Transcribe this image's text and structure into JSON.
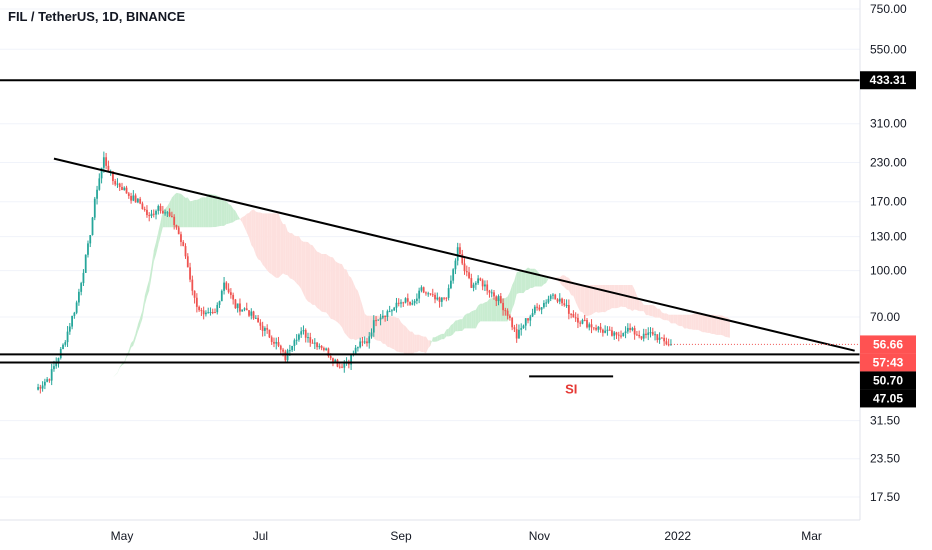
{
  "chart_data": {
    "type": "candlestick",
    "title": "FIL / TetherUS, 1D, BINANCE",
    "y_scale": "log",
    "y_ticks": [
      {
        "value": 17.5,
        "label": "17.50"
      },
      {
        "value": 23.5,
        "label": "23.50"
      },
      {
        "value": 31.5,
        "label": "31.50"
      },
      {
        "value": 70,
        "label": "70.00"
      },
      {
        "value": 100,
        "label": "100.00"
      },
      {
        "value": 130,
        "label": "130.00"
      },
      {
        "value": 170,
        "label": "170.00"
      },
      {
        "value": 230,
        "label": "230.00"
      },
      {
        "value": 310,
        "label": "310.00"
      },
      {
        "value": 550,
        "label": "550.00"
      },
      {
        "value": 750,
        "label": "750.00"
      }
    ],
    "x_ticks": [
      {
        "date": "2021-05-01",
        "label": "May"
      },
      {
        "date": "2021-07-01",
        "label": "Jul"
      },
      {
        "date": "2021-09-01",
        "label": "Sep"
      },
      {
        "date": "2021-11-01",
        "label": "Nov"
      },
      {
        "date": "2022-01-01",
        "label": "2022"
      },
      {
        "date": "2022-03-01",
        "label": "Mar"
      }
    ],
    "price_badges": [
      {
        "value": 433.31,
        "label": "433.31",
        "bg": "#000000",
        "fg": "#ffffff"
      },
      {
        "value": 56.66,
        "label": "56.66",
        "bg": "#ff5252",
        "fg": "#ffffff"
      },
      {
        "value": 53.6,
        "label": "57:43",
        "bg": "#ff5252",
        "fg": "#ffffff"
      },
      {
        "value": 50.7,
        "label": "50.70",
        "bg": "#000000",
        "fg": "#ffffff"
      },
      {
        "value": 47.05,
        "label": "47.05",
        "bg": "#000000",
        "fg": "#ffffff"
      }
    ],
    "horizontal_lines": [
      433.31,
      52.5,
      49.3
    ],
    "trendline": {
      "start": {
        "date": "2021-04-01",
        "value": 237
      },
      "end": {
        "date": "2022-03-20",
        "value": 54
      }
    },
    "annotation": {
      "text": "SI",
      "date": "2021-11-15",
      "value": 44.3,
      "color": "#e53935"
    },
    "key_prices": {
      "april_high": 237,
      "september_high": 120,
      "july_low": 47.2,
      "last_close": 56.66
    },
    "colors": {
      "up": "#26a69a",
      "down": "#ef5350",
      "cloud_bull": "#c8ecd0",
      "cloud_bear": "#fde0de",
      "lines": "#000000"
    }
  }
}
